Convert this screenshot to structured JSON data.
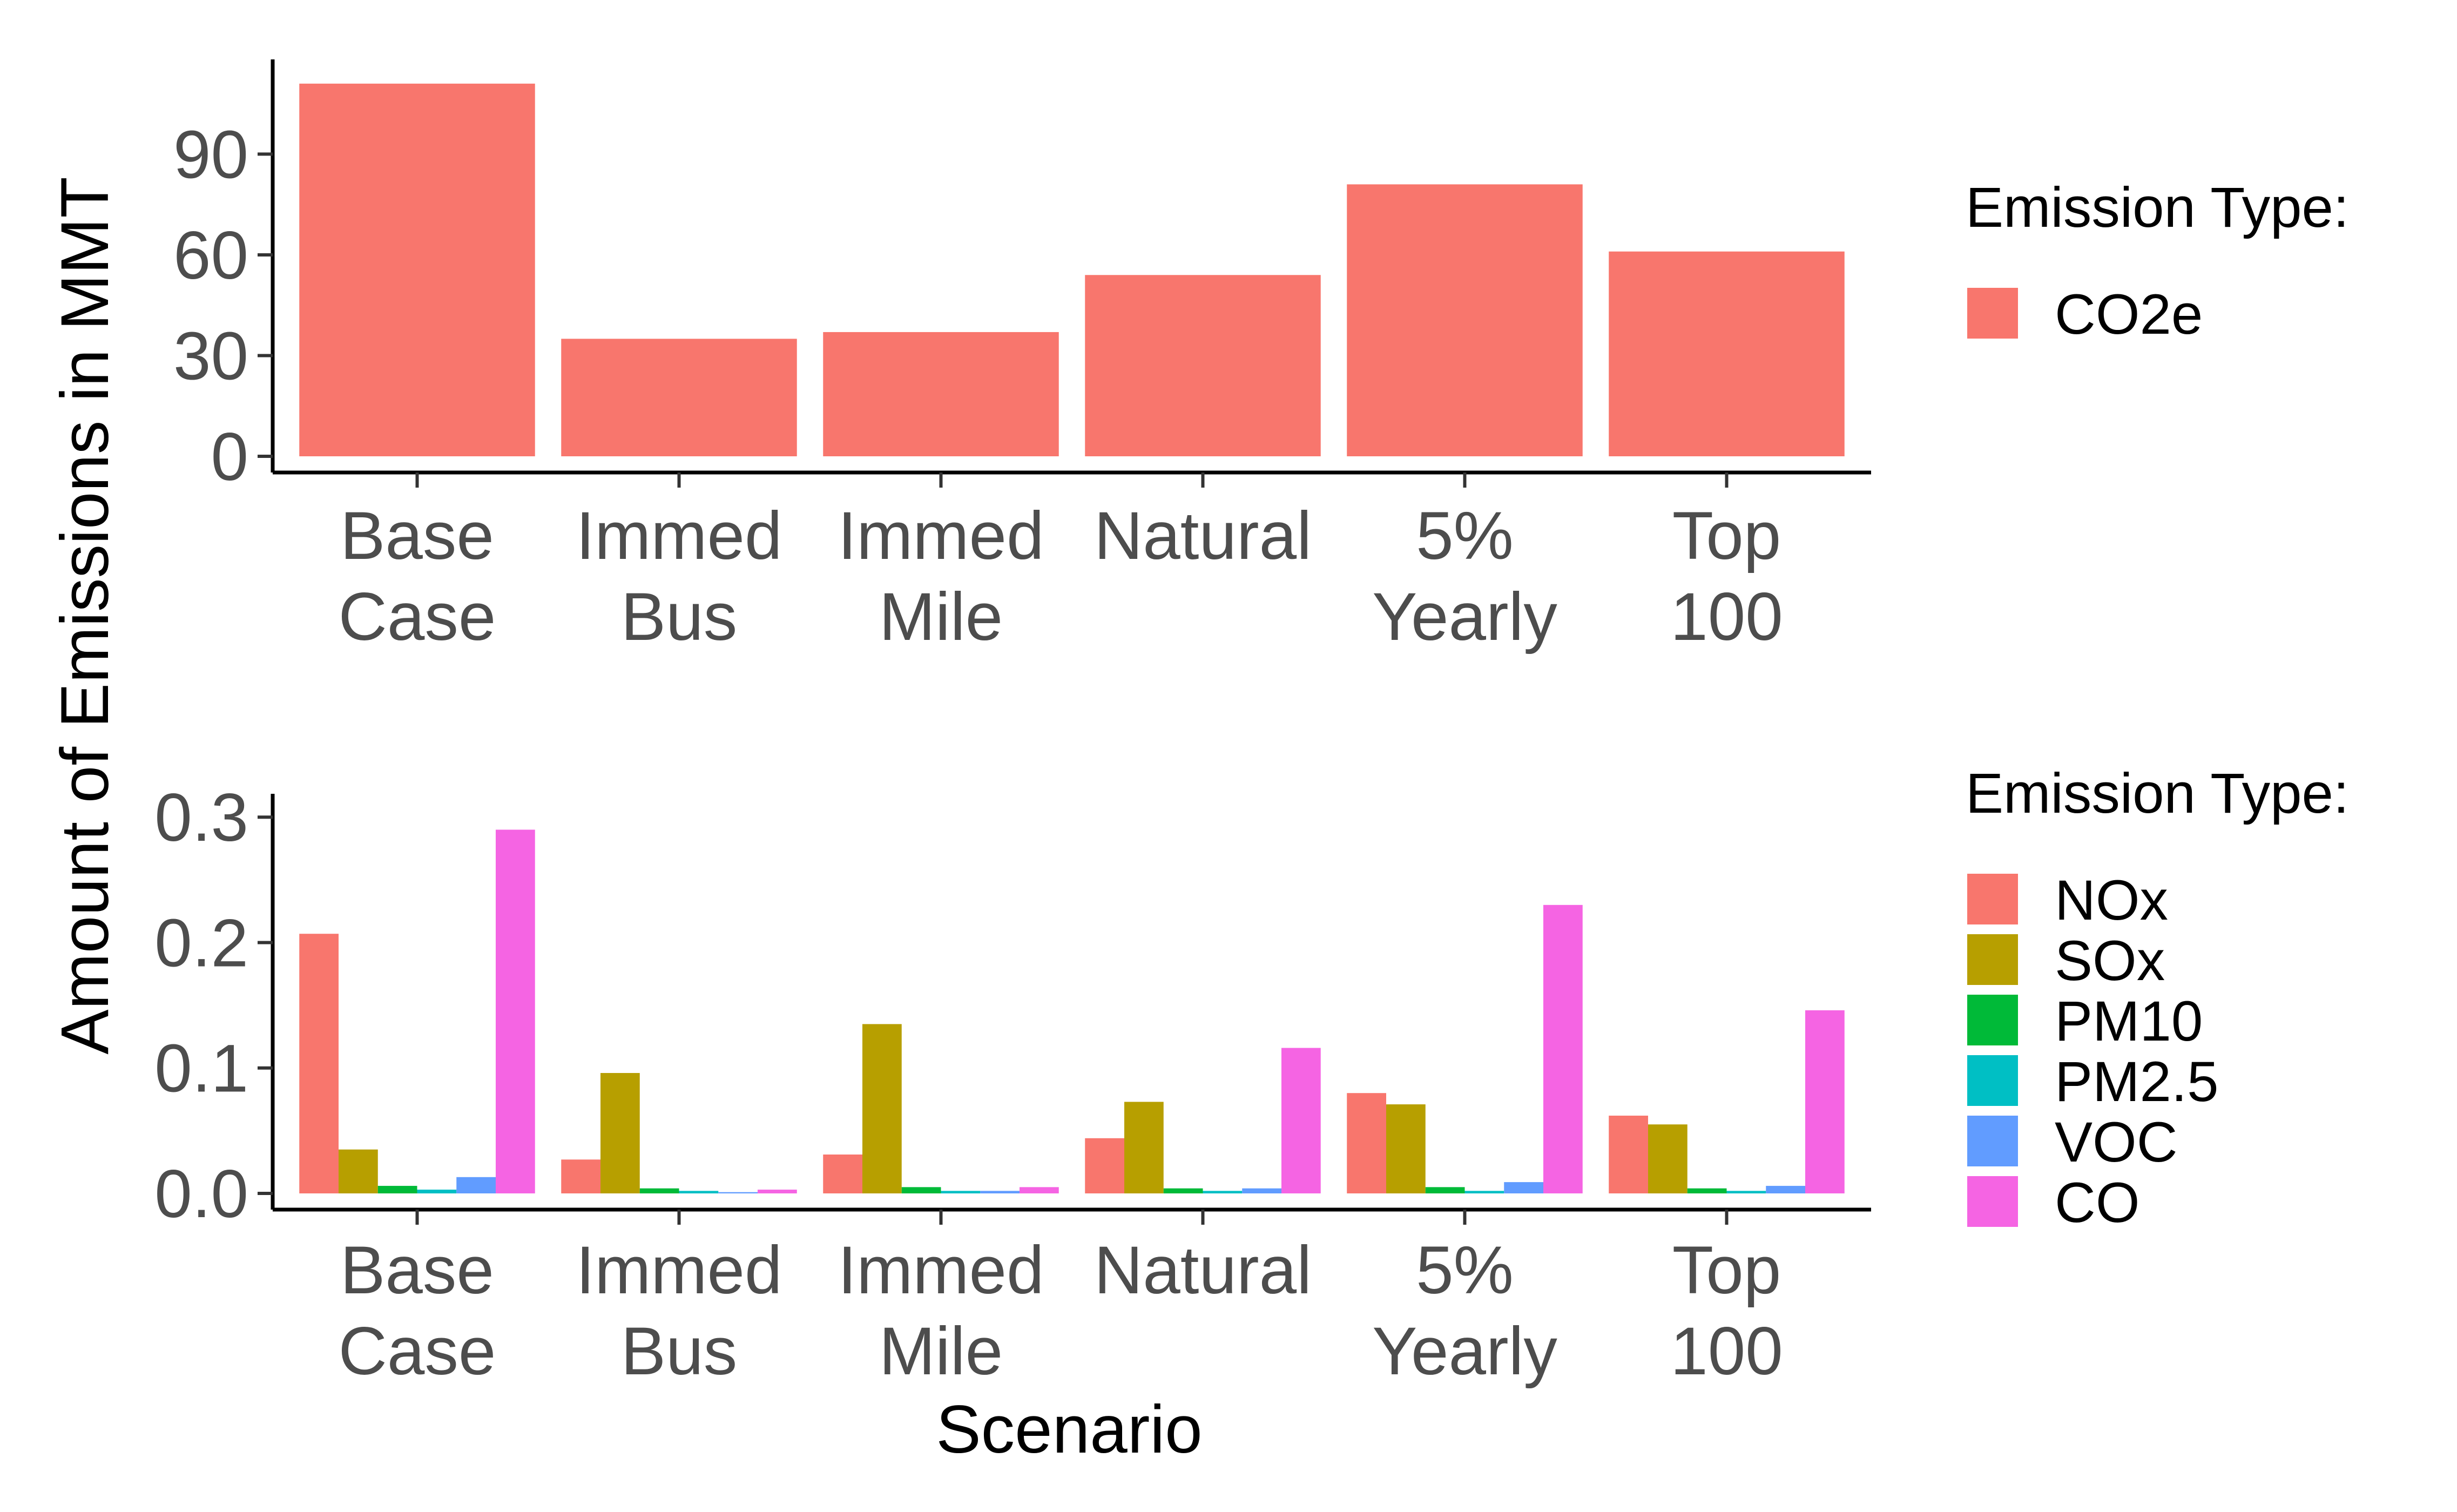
{
  "chart_data": [
    {
      "type": "bar",
      "categories": [
        [
          "Base",
          "Case"
        ],
        [
          "Immed",
          "Bus"
        ],
        [
          "Immed",
          "Mile"
        ],
        [
          "Natural"
        ],
        [
          "5%",
          "Yearly"
        ],
        [
          "Top",
          "100"
        ]
      ],
      "series": [
        {
          "name": "CO2e",
          "color": "#F8766D",
          "values": [
            111,
            35,
            37,
            54,
            81,
            61
          ]
        }
      ],
      "ylim": [
        0,
        115
      ],
      "yticks": [
        "0",
        "30",
        "60",
        "90"
      ],
      "legend_title": "Emission Type:",
      "legend_position": "right",
      "grid": false
    },
    {
      "type": "bar",
      "categories": [
        [
          "Base",
          "Case"
        ],
        [
          "Immed",
          "Bus"
        ],
        [
          "Immed",
          "Mile"
        ],
        [
          "Natural"
        ],
        [
          "5%",
          "Yearly"
        ],
        [
          "Top",
          "100"
        ]
      ],
      "series": [
        {
          "name": "NOx",
          "color": "#F8766D",
          "values": [
            0.207,
            0.027,
            0.031,
            0.044,
            0.08,
            0.062
          ]
        },
        {
          "name": "SOx",
          "color": "#B79F00",
          "values": [
            0.035,
            0.096,
            0.135,
            0.073,
            0.071,
            0.055
          ]
        },
        {
          "name": "PM10",
          "color": "#00BA38",
          "values": [
            0.006,
            0.004,
            0.005,
            0.004,
            0.005,
            0.004
          ]
        },
        {
          "name": "PM2.5",
          "color": "#00BFC4",
          "values": [
            0.003,
            0.002,
            0.002,
            0.002,
            0.002,
            0.002
          ]
        },
        {
          "name": "VOC",
          "color": "#619CFF",
          "values": [
            0.013,
            0.001,
            0.002,
            0.004,
            0.009,
            0.006
          ]
        },
        {
          "name": "CO",
          "color": "#F564E3",
          "values": [
            0.29,
            0.003,
            0.005,
            0.116,
            0.23,
            0.146
          ]
        }
      ],
      "ylim": [
        0,
        0.31
      ],
      "yticks": [
        "0.0",
        "0.1",
        "0.2",
        "0.3"
      ],
      "legend_title": "Emission Type:",
      "legend_position": "right",
      "grid": false
    }
  ],
  "ylabel": "Amount of Emissions in MMT",
  "xlabel": "Scenario"
}
